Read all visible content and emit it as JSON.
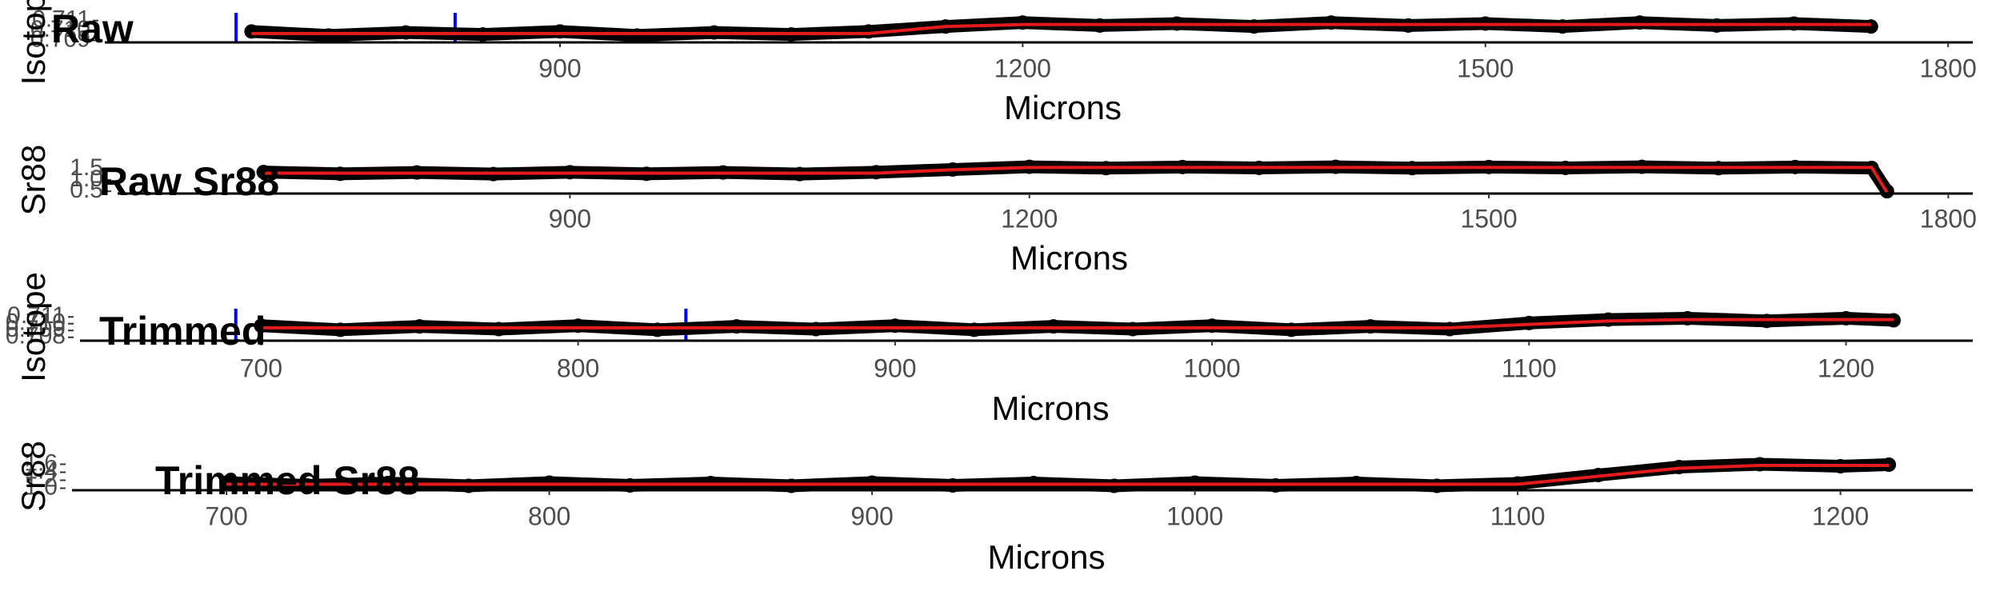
{
  "chart_data": [
    {
      "type": "scatter",
      "title": "Raw",
      "x_label": "Microns",
      "y_label": "Isotope",
      "x": [
        700,
        750,
        800,
        850,
        900,
        950,
        1000,
        1050,
        1100,
        1150,
        1200,
        1250,
        1300,
        1350,
        1400,
        1450,
        1500,
        1550,
        1600,
        1650,
        1700,
        1750
      ],
      "series": [
        {
          "color": "#000000",
          "mode": "points",
          "values": [
            0.7099,
            0.7095,
            0.7098,
            0.7096,
            0.7099,
            0.7095,
            0.7098,
            0.7096,
            0.7099,
            0.7104,
            0.7108,
            0.7105,
            0.7107,
            0.7104,
            0.7108,
            0.7105,
            0.7107,
            0.7104,
            0.7108,
            0.7105,
            0.7107,
            0.7104
          ]
        },
        {
          "color": "#e41a1c",
          "mode": "line",
          "values": [
            0.7097,
            0.7097,
            0.7097,
            0.7097,
            0.7097,
            0.7097,
            0.7097,
            0.7097,
            0.7097,
            0.7104,
            0.7106,
            0.7106,
            0.7106,
            0.7106,
            0.7106,
            0.7106,
            0.7106,
            0.7106,
            0.7106,
            0.7106,
            0.7106,
            0.7106
          ]
        }
      ],
      "vlines": {
        "color": "#0000ff",
        "x": [
          690,
          832
        ]
      },
      "xlim": [
        636,
        1816
      ],
      "xticks": [
        900,
        1200,
        1500,
        1800
      ],
      "ylim": [
        0.7088,
        0.7113
      ],
      "yticks": [
        {
          "value": 0.709,
          "label": "0.709"
        },
        {
          "value": 0.71,
          "label": "0.710"
        },
        {
          "value": 0.711,
          "label": "0.711"
        }
      ]
    },
    {
      "type": "scatter",
      "title": "Raw Sr88",
      "x_label": "Microns",
      "y_label": "Sr88",
      "x": [
        700,
        750,
        800,
        850,
        900,
        950,
        1000,
        1050,
        1100,
        1150,
        1200,
        1250,
        1300,
        1350,
        1400,
        1450,
        1500,
        1550,
        1600,
        1650,
        1700,
        1750,
        1760
      ],
      "series": [
        {
          "color": "#000000",
          "mode": "points",
          "values": [
            1.35,
            1.27,
            1.33,
            1.26,
            1.34,
            1.27,
            1.33,
            1.26,
            1.34,
            1.46,
            1.58,
            1.52,
            1.57,
            1.53,
            1.58,
            1.52,
            1.57,
            1.53,
            1.58,
            1.52,
            1.57,
            1.53,
            0.5
          ]
        },
        {
          "color": "#e41a1c",
          "mode": "line",
          "values": [
            1.3,
            1.3,
            1.3,
            1.3,
            1.3,
            1.3,
            1.3,
            1.3,
            1.3,
            1.45,
            1.55,
            1.55,
            1.55,
            1.55,
            1.55,
            1.55,
            1.55,
            1.55,
            1.55,
            1.55,
            1.55,
            1.55,
            0.45
          ]
        }
      ],
      "xlim": [
        636,
        1816
      ],
      "xticks": [
        900,
        1200,
        1500,
        1800
      ],
      "ylim": [
        0.4,
        1.6
      ],
      "yticks": [
        {
          "value": 0.5,
          "label": "0.5"
        },
        {
          "value": 1,
          "label": "1.0"
        },
        1.5
      ]
    },
    {
      "type": "scatter",
      "title": "Trimmed",
      "x_label": "Microns",
      "y_label": "Isotope",
      "x": [
        700,
        725,
        750,
        775,
        800,
        825,
        850,
        875,
        900,
        925,
        950,
        975,
        1000,
        1025,
        1050,
        1075,
        1100,
        1125,
        1150,
        1175,
        1200,
        1215
      ],
      "series": [
        {
          "color": "#000000",
          "mode": "points",
          "values": [
            0.7097,
            0.7091,
            0.7096,
            0.7092,
            0.7097,
            0.7091,
            0.7096,
            0.7092,
            0.7097,
            0.7091,
            0.7096,
            0.7092,
            0.7097,
            0.7091,
            0.7096,
            0.7092,
            0.7101,
            0.7106,
            0.7108,
            0.7104,
            0.7108,
            0.7105
          ]
        },
        {
          "color": "#e41a1c",
          "mode": "line",
          "values": [
            0.7094,
            0.7094,
            0.7094,
            0.7094,
            0.7094,
            0.7094,
            0.7094,
            0.7094,
            0.7094,
            0.7094,
            0.7094,
            0.7094,
            0.7094,
            0.7094,
            0.7094,
            0.7094,
            0.7099,
            0.7104,
            0.7106,
            0.7106,
            0.7106,
            0.7106
          ]
        }
      ],
      "vlines": {
        "color": "#0000ff",
        "x": [
          692,
          834
        ]
      },
      "xlim": [
        658,
        1240
      ],
      "xticks": [
        700,
        800,
        900,
        1000,
        1100,
        1200
      ],
      "ylim": [
        0.7075,
        0.7115
      ],
      "yticks": [
        {
          "value": 0.708,
          "label": "0.708"
        },
        {
          "value": 0.709,
          "label": "0.709"
        },
        {
          "value": 0.71,
          "label": "0.710"
        },
        {
          "value": 0.711,
          "label": "0.711"
        }
      ]
    },
    {
      "type": "scatter",
      "title": "Trimmed Sr88",
      "x_label": "Microns",
      "y_label": "Sr88",
      "x": [
        700,
        725,
        750,
        775,
        800,
        825,
        850,
        875,
        900,
        925,
        950,
        975,
        1000,
        1025,
        1050,
        1075,
        1100,
        1125,
        1150,
        1175,
        1200,
        1215
      ],
      "series": [
        {
          "color": "#000000",
          "mode": "points",
          "values": [
            1.14,
            1.07,
            1.13,
            1.06,
            1.14,
            1.07,
            1.13,
            1.06,
            1.14,
            1.07,
            1.13,
            1.06,
            1.14,
            1.07,
            1.13,
            1.06,
            1.12,
            1.33,
            1.53,
            1.6,
            1.55,
            1.59
          ]
        },
        {
          "color": "#e41a1c",
          "mode": "line",
          "values": [
            1.1,
            1.1,
            1.1,
            1.1,
            1.1,
            1.1,
            1.1,
            1.1,
            1.1,
            1.1,
            1.1,
            1.1,
            1.1,
            1.1,
            1.1,
            1.1,
            1.1,
            1.3,
            1.5,
            1.57,
            1.57,
            1.57
          ]
        }
      ],
      "xlim": [
        667,
        1241
      ],
      "xticks": [
        700,
        800,
        900,
        1000,
        1100,
        1200
      ],
      "ylim": [
        0.95,
        1.65
      ],
      "yticks": [
        {
          "value": 1,
          "label": "1.0"
        },
        {
          "value": 1.2,
          "label": "1.2"
        },
        {
          "value": 1.4,
          "label": "1.4"
        },
        {
          "value": 1.6,
          "label": "1.6"
        }
      ]
    }
  ]
}
